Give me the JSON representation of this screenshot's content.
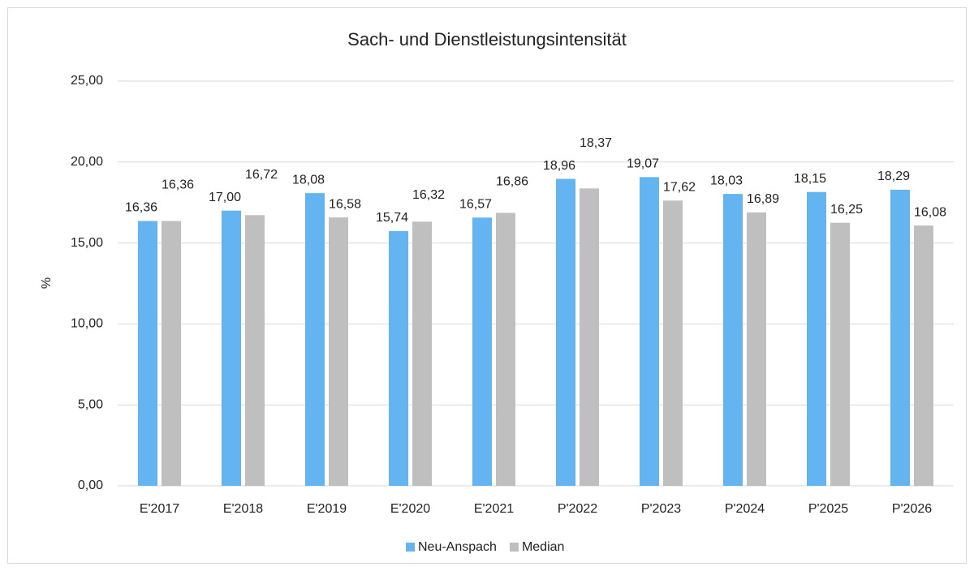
{
  "chart_data": {
    "type": "bar",
    "title": "Sach- und Dienstleistungsintensität",
    "y_label": "%",
    "categories": [
      "E'2017",
      "E'2018",
      "E'2019",
      "E'2020",
      "E'2021",
      "P'2022",
      "P'2023",
      "P'2024",
      "P'2025",
      "P'2026"
    ],
    "series": [
      {
        "name": "Neu-Anspach",
        "color": "#64b4f2",
        "values": [
          16.36,
          17.0,
          18.08,
          15.74,
          16.57,
          18.96,
          19.07,
          18.03,
          18.15,
          18.29
        ],
        "value_labels": [
          "16,36",
          "17,00",
          "18,08",
          "15,74",
          "16,57",
          "18,96",
          "19,07",
          "18,03",
          "18,15",
          "18,29"
        ]
      },
      {
        "name": "Median",
        "color": "#bfbfbf",
        "values": [
          16.36,
          16.72,
          16.58,
          16.32,
          16.86,
          18.37,
          17.62,
          16.89,
          16.25,
          16.08
        ],
        "value_labels": [
          "16,36",
          "16,72",
          "16,58",
          "16,32",
          "16,86",
          "18,37",
          "17,62",
          "16,89",
          "16,25",
          "16,08"
        ]
      }
    ],
    "ylim": [
      0,
      25
    ],
    "yticks": [
      {
        "value": 0,
        "label": "0,00"
      },
      {
        "value": 5,
        "label": "5,00"
      },
      {
        "value": 10,
        "label": "10,00"
      },
      {
        "value": 15,
        "label": "15,00"
      },
      {
        "value": 20,
        "label": "20,00"
      },
      {
        "value": 25,
        "label": "25,00"
      }
    ],
    "grid": true,
    "legend": "bottom"
  }
}
